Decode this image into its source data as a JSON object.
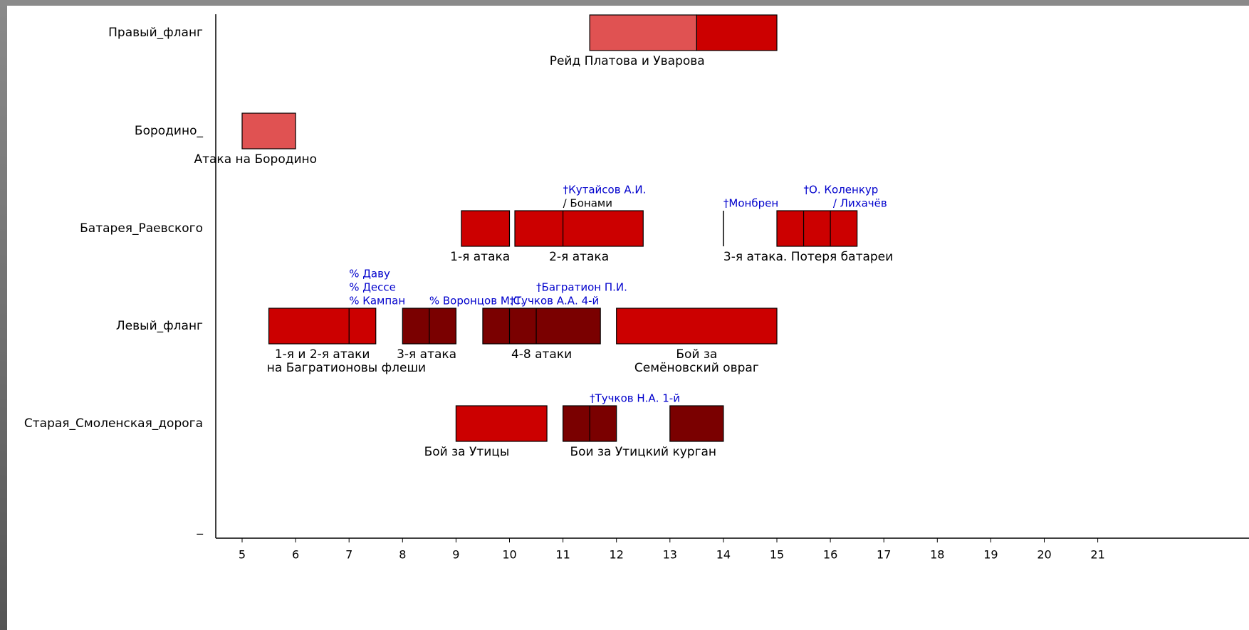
{
  "chart_data": {
    "type": "gantt",
    "title": "",
    "xlabel": "",
    "ylabel": "",
    "xlim": [
      4.5,
      21
    ],
    "x_ticks": [
      5,
      6,
      7,
      8,
      9,
      10,
      11,
      12,
      13,
      14,
      15,
      16,
      17,
      18,
      19,
      20,
      21
    ],
    "rows": [
      "Правый_фланг",
      "Бородино_",
      "Батарея_Раевского",
      "Левый_фланг",
      "Старая_Смоленская_дорога",
      "_"
    ],
    "colors": {
      "light": "#e05252",
      "medium": "#cc0000",
      "dark": "#7a0000"
    },
    "bars": [
      {
        "row": 0,
        "start": 11.5,
        "end": 13.5,
        "color": "light"
      },
      {
        "row": 0,
        "start": 13.5,
        "end": 15,
        "color": "medium"
      },
      {
        "row": 1,
        "start": 5,
        "end": 6,
        "color": "light"
      },
      {
        "row": 2,
        "start": 9.1,
        "end": 10,
        "color": "medium"
      },
      {
        "row": 2,
        "start": 10.1,
        "end": 12.5,
        "color": "medium",
        "dividers": [
          11
        ]
      },
      {
        "row": 2,
        "start": 15,
        "end": 16.5,
        "color": "medium",
        "dividers": [
          15.5,
          16
        ]
      },
      {
        "row": 3,
        "start": 5.5,
        "end": 7.5,
        "color": "medium",
        "dividers": [
          7
        ]
      },
      {
        "row": 3,
        "start": 8,
        "end": 9,
        "color": "dark",
        "dividers": [
          8.5
        ]
      },
      {
        "row": 3,
        "start": 9.5,
        "end": 11.7,
        "color": "dark",
        "dividers": [
          10,
          10.5
        ]
      },
      {
        "row": 3,
        "start": 12,
        "end": 15,
        "color": "medium"
      },
      {
        "row": 4,
        "start": 9,
        "end": 10.7,
        "color": "medium"
      },
      {
        "row": 4,
        "start": 11,
        "end": 12,
        "color": "dark",
        "dividers": [
          11.5
        ]
      },
      {
        "row": 4,
        "start": 13,
        "end": 14,
        "color": "dark"
      }
    ],
    "markers": [
      {
        "row": 2,
        "x": 14
      }
    ],
    "labels": [
      {
        "row": 0,
        "x": 12.2,
        "lines": [
          "Рейд Платова и Уварова"
        ],
        "anchor": "middle"
      },
      {
        "row": 1,
        "x": 5.25,
        "lines": [
          "Атака на Бородино"
        ],
        "anchor": "middle"
      },
      {
        "row": 2,
        "x": 9.45,
        "lines": [
          "1-я атака"
        ],
        "anchor": "middle"
      },
      {
        "row": 2,
        "x": 11.3,
        "lines": [
          "2-я атака"
        ],
        "anchor": "middle"
      },
      {
        "row": 2,
        "x": 14,
        "lines": [
          "3-я атака. Потеря батареи"
        ],
        "anchor": "start"
      },
      {
        "row": 3,
        "x": 6.5,
        "lines": [
          "1-я и 2-я атаки",
          "на Багратионовы флеши"
        ],
        "anchor": "middle",
        "offsets": [
          0,
          0.45
        ]
      },
      {
        "row": 3,
        "x": 8.45,
        "lines": [
          "3-я атака"
        ],
        "anchor": "middle"
      },
      {
        "row": 3,
        "x": 10.6,
        "lines": [
          "4-8 атаки"
        ],
        "anchor": "middle"
      },
      {
        "row": 3,
        "x": 13.5,
        "lines": [
          "Бой за",
          "Семёновский овраг"
        ],
        "anchor": "middle"
      },
      {
        "row": 4,
        "x": 9.2,
        "lines": [
          "Бой за Утицы"
        ],
        "anchor": "middle"
      },
      {
        "row": 4,
        "x": 12.5,
        "lines": [
          "Бои за Утицкий курган"
        ],
        "anchor": "middle"
      }
    ],
    "annotations": [
      {
        "row": 2,
        "x": 11,
        "lines": [
          "†Кутайсов А.И.",
          "/ Бонами"
        ],
        "colors": [
          "blue",
          "black"
        ]
      },
      {
        "row": 2,
        "x": 14,
        "lines": [
          "†Монбрен"
        ],
        "colors": [
          "blue"
        ]
      },
      {
        "row": 2,
        "x": 15.5,
        "lines": [
          "†О. Коленкур",
          "/ Лихачёв"
        ],
        "colors": [
          "blue",
          "blue"
        ],
        "offsets": [
          0,
          0.55
        ]
      },
      {
        "row": 3,
        "x": 7,
        "lines": [
          "% Даву",
          "% Дессе",
          "% Кампан"
        ],
        "colors": [
          "blue",
          "blue",
          "blue"
        ]
      },
      {
        "row": 3,
        "x": 8.5,
        "lines": [
          "% Воронцов М.С."
        ],
        "colors": [
          "blue"
        ]
      },
      {
        "row": 3,
        "x": 10,
        "lines": [
          "†Тучков А.А. 4-й"
        ],
        "colors": [
          "blue"
        ]
      },
      {
        "row": 3,
        "x": 10.5,
        "lines": [
          "†Багратион П.И."
        ],
        "colors": [
          "blue"
        ],
        "stack": 2
      },
      {
        "row": 4,
        "x": 11.5,
        "lines": [
          "†Тучков Н.А. 1-й"
        ],
        "colors": [
          "blue"
        ]
      }
    ],
    "annotation_colors": {
      "blue": "#0000cc",
      "black": "#000000"
    },
    "grid": false,
    "legend": "none"
  }
}
